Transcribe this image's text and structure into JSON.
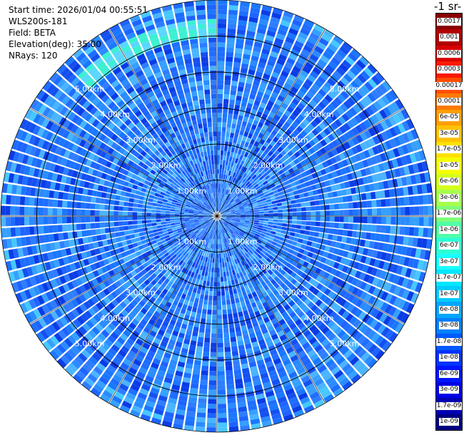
{
  "header": {
    "start_time": "Start time: 2026/01/04 00:55:51",
    "instrument": "WLS200s-181",
    "field": "Field: BETA",
    "elevation": "Elevation(deg): 35.00",
    "nrays": "NRays: 120"
  },
  "colorbar": {
    "title_fragment": "-1 sr-",
    "labels": [
      "0.0017",
      "0.001",
      "0.0006",
      "0.0003",
      "0.00017",
      "0.0001",
      "6e-05",
      "3e-05",
      "1.7e-05",
      "1e-05",
      "6e-06",
      "3e-06",
      "1.7e-06",
      "1e-06",
      "6e-07",
      "3e-07",
      "1.7e-07",
      "1e-07",
      "6e-08",
      "3e-08",
      "1.7e-08",
      "1e-08",
      "6e-09",
      "3e-09",
      "1.7e-09",
      "1e-09"
    ],
    "colors": [
      "#8b0000",
      "#b20000",
      "#d80000",
      "#ff1a00",
      "#ff4d00",
      "#ff7a00",
      "#ff9e00",
      "#ffc200",
      "#ffe100",
      "#f5ff00",
      "#d4ff1a",
      "#a6ff4d",
      "#7dff7a",
      "#52ffa6",
      "#2dffd4",
      "#1affff",
      "#00e6ff",
      "#00ccff",
      "#00a6ff",
      "#0080ff",
      "#0059ff",
      "#0033ff",
      "#0014ff",
      "#0000e6",
      "#0000b3",
      "#000080"
    ]
  },
  "chart_data": {
    "type": "heatmap",
    "projection": "polar-ppi",
    "rings": [
      {
        "range_km": 1.0,
        "label": "1.00km"
      },
      {
        "range_km": 2.0,
        "label": "2.00km"
      },
      {
        "range_km": 3.0,
        "label": "3.00km"
      },
      {
        "range_km": 4.0,
        "label": "4.00km"
      },
      {
        "range_km": 5.0,
        "label": "5.00km"
      }
    ],
    "max_range_km": 6.0,
    "nrays": 120,
    "typical_value": "1e-07",
    "high_band_value": "1.7e-06"
  }
}
